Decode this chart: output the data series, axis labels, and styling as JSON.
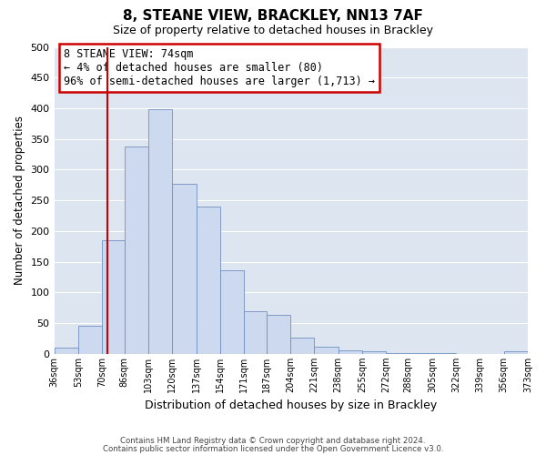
{
  "title": "8, STEANE VIEW, BRACKLEY, NN13 7AF",
  "subtitle": "Size of property relative to detached houses in Brackley",
  "xlabel": "Distribution of detached houses by size in Brackley",
  "ylabel": "Number of detached properties",
  "bar_color": "#cdd9ee",
  "bar_edge_color": "#7090c0",
  "bar_edge_width": 0.6,
  "plot_bg_color": "#dde6f0",
  "fig_bg_color": "#ffffff",
  "grid_color": "#ffffff",
  "redline_color": "#cc0000",
  "redline_x": 74,
  "annotation_title": "8 STEANE VIEW: 74sqm",
  "annotation_line1": "← 4% of detached houses are smaller (80)",
  "annotation_line2": "96% of semi-detached houses are larger (1,713) →",
  "annotation_box_facecolor": "#ffffff",
  "annotation_box_edgecolor": "#cc0000",
  "bin_edges": [
    36,
    53,
    70,
    86,
    103,
    120,
    137,
    154,
    171,
    187,
    204,
    221,
    238,
    255,
    272,
    288,
    305,
    322,
    339,
    356,
    373
  ],
  "bin_labels": [
    "36sqm",
    "53sqm",
    "70sqm",
    "86sqm",
    "103sqm",
    "120sqm",
    "137sqm",
    "154sqm",
    "171sqm",
    "187sqm",
    "204sqm",
    "221sqm",
    "238sqm",
    "255sqm",
    "272sqm",
    "288sqm",
    "305sqm",
    "322sqm",
    "339sqm",
    "356sqm",
    "373sqm"
  ],
  "bar_heights": [
    10,
    46,
    185,
    337,
    398,
    277,
    240,
    136,
    70,
    63,
    26,
    12,
    6,
    4,
    2,
    2,
    1,
    0,
    0,
    5
  ],
  "ylim": [
    0,
    500
  ],
  "yticks": [
    0,
    50,
    100,
    150,
    200,
    250,
    300,
    350,
    400,
    450,
    500
  ],
  "footer1": "Contains HM Land Registry data © Crown copyright and database right 2024.",
  "footer2": "Contains public sector information licensed under the Open Government Licence v3.0."
}
